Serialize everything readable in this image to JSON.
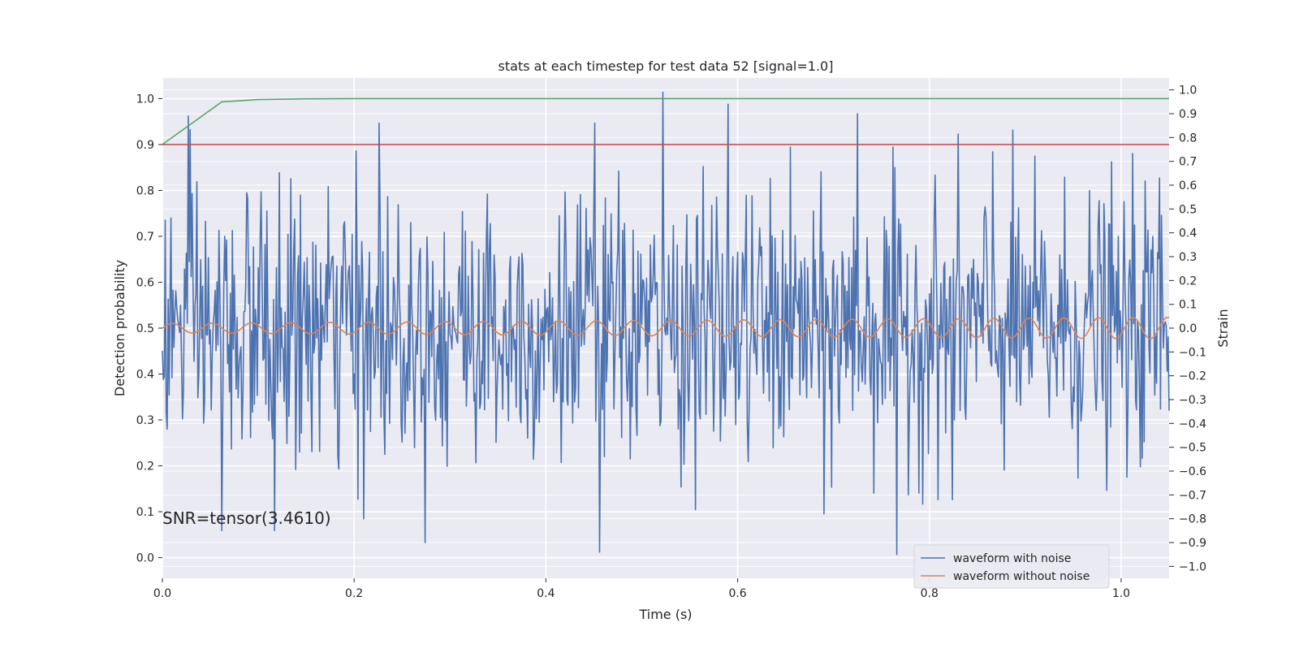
{
  "chart_data": {
    "type": "line",
    "title": "stats at each timestep for test data 52 [signal=1.0]",
    "xlabel": "Time (s)",
    "ylabel": "Detection probability",
    "y2label": "Strain",
    "annotation": "SNR=tensor(3.4610)",
    "xlim": [
      0.0,
      1.05
    ],
    "ylim": [
      -0.045,
      1.045
    ],
    "y2lim": [
      -1.05,
      1.05
    ],
    "grid": true,
    "legend_position": "lower-right",
    "xticks": [
      0.0,
      0.2,
      0.4,
      0.6,
      0.8,
      1.0
    ],
    "yticks": [
      0.0,
      0.1,
      0.2,
      0.3,
      0.4,
      0.5,
      0.6,
      0.7,
      0.8,
      0.9,
      1.0
    ],
    "y2ticks": [
      -1.0,
      -0.9,
      -0.8,
      -0.7,
      -0.6,
      -0.5,
      -0.4,
      -0.3,
      -0.2,
      -0.1,
      0.0,
      0.1,
      0.2,
      0.3,
      0.4,
      0.5,
      0.6,
      0.7,
      0.8,
      0.9,
      1.0
    ],
    "colors": {
      "plot_bg": "#eaeaf2",
      "noisy": "#4c72b0",
      "clean": "#dd8452",
      "probability": "#55a868",
      "threshold": "#c44e52"
    },
    "series": [
      {
        "name": "waveform with noise",
        "axis": "right",
        "sample_rate_hz": 1000,
        "spikes_max": [
          [
            0.027,
            0.89
          ],
          [
            0.226,
            0.86
          ],
          [
            0.451,
            0.86
          ],
          [
            0.522,
            0.99
          ],
          [
            0.59,
            0.94
          ],
          [
            0.725,
            0.9
          ],
          [
            0.866,
            0.74
          ],
          [
            1.04,
            0.63
          ]
        ],
        "spikes_min": [
          [
            0.062,
            -0.85
          ],
          [
            0.117,
            -0.85
          ],
          [
            0.21,
            -0.8
          ],
          [
            0.456,
            -0.94
          ],
          [
            0.766,
            -0.95
          ],
          [
            0.69,
            -0.78
          ],
          [
            0.824,
            -0.72
          ]
        ]
      },
      {
        "name": "waveform without noise",
        "axis": "right",
        "amplitude_start": 0.02,
        "amplitude_end": 0.045,
        "frequency_start_hz": 24,
        "frequency_end_hz": 28
      },
      {
        "axis": "left",
        "x": [
          0.0,
          0.062,
          0.1,
          0.15,
          0.2,
          0.4,
          0.6,
          0.8,
          1.0,
          1.05
        ],
        "y": [
          0.9,
          0.993,
          0.998,
          0.9995,
          1.0,
          1.0,
          1.0,
          1.0,
          1.0,
          1.0
        ]
      },
      {
        "axis": "left",
        "x": [
          0.0,
          1.05
        ],
        "y": [
          0.9,
          0.9
        ]
      }
    ]
  }
}
